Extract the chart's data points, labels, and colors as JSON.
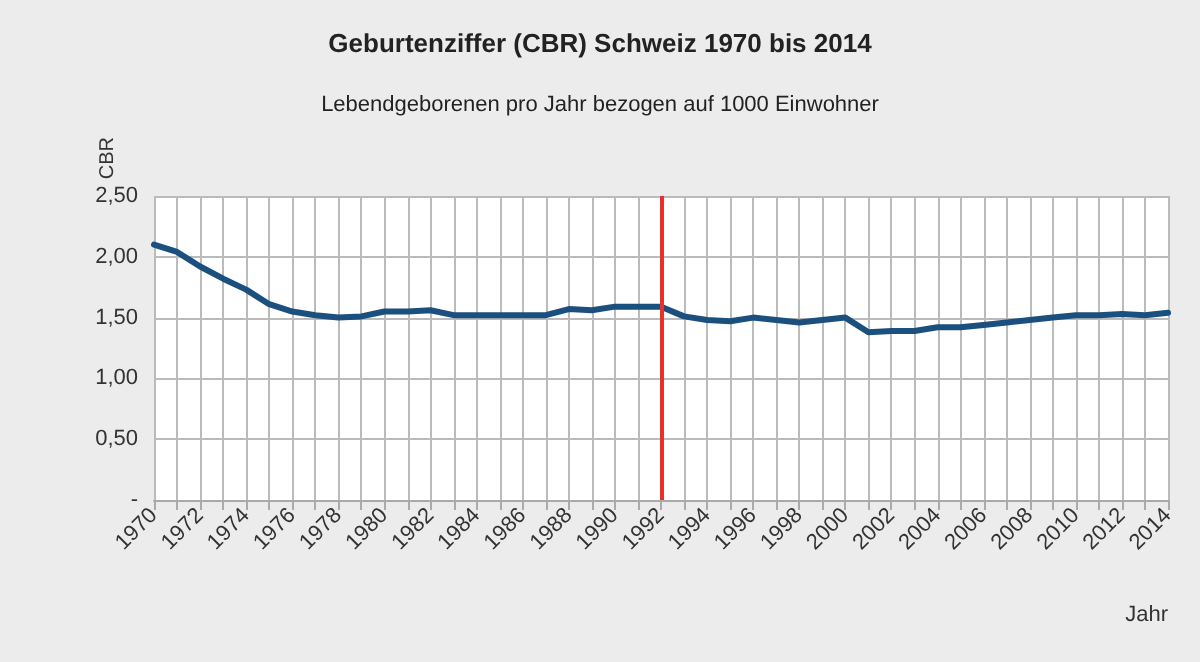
{
  "chart_data": {
    "type": "line",
    "title": "Geburtenziffer (CBR) Schweiz 1970 bis 2014",
    "subtitle": "Lebendgeborenen pro Jahr bezogen auf 1000 Einwohner",
    "xlabel": "Jahr",
    "ylabel": "CBR",
    "x": [
      1970,
      1971,
      1972,
      1973,
      1974,
      1975,
      1976,
      1977,
      1978,
      1979,
      1980,
      1981,
      1982,
      1983,
      1984,
      1985,
      1986,
      1987,
      1988,
      1989,
      1990,
      1991,
      1992,
      1993,
      1994,
      1995,
      1996,
      1997,
      1998,
      1999,
      2000,
      2001,
      2002,
      2003,
      2004,
      2005,
      2006,
      2007,
      2008,
      2009,
      2010,
      2011,
      2012,
      2013,
      2014
    ],
    "series": [
      {
        "color": "#1b4f7e",
        "values": [
          2.1,
          2.04,
          1.92,
          1.82,
          1.73,
          1.61,
          1.55,
          1.52,
          1.5,
          1.51,
          1.55,
          1.55,
          1.56,
          1.52,
          1.52,
          1.52,
          1.52,
          1.52,
          1.57,
          1.56,
          1.59,
          1.59,
          1.59,
          1.51,
          1.48,
          1.47,
          1.5,
          1.48,
          1.46,
          1.48,
          1.5,
          1.38,
          1.39,
          1.39,
          1.42,
          1.42,
          1.44,
          1.46,
          1.48,
          1.5,
          1.52,
          1.52,
          1.53,
          1.52,
          1.54
        ]
      }
    ],
    "xlim": [
      1970,
      2014
    ],
    "xticks": [
      1970,
      {
        "value": 1971,
        "label": null
      },
      1972,
      {
        "value": 1973,
        "label": null
      },
      1974,
      {
        "value": 1975,
        "label": null
      },
      1976,
      {
        "value": 1977,
        "label": null
      },
      1978,
      {
        "value": 1979,
        "label": null
      },
      1980,
      {
        "value": 1981,
        "label": null
      },
      1982,
      {
        "value": 1983,
        "label": null
      },
      1984,
      {
        "value": 1985,
        "label": null
      },
      1986,
      {
        "value": 1987,
        "label": null
      },
      1988,
      {
        "value": 1989,
        "label": null
      },
      1990,
      {
        "value": 1991,
        "label": null
      },
      1992,
      {
        "value": 1993,
        "label": null
      },
      1994,
      {
        "value": 1995,
        "label": null
      },
      1996,
      {
        "value": 1997,
        "label": null
      },
      1998,
      {
        "value": 1999,
        "label": null
      },
      2000,
      {
        "value": 2001,
        "label": null
      },
      2002,
      {
        "value": 2003,
        "label": null
      },
      2004,
      {
        "value": 2005,
        "label": null
      },
      2006,
      {
        "value": 2007,
        "label": null
      },
      2008,
      {
        "value": 2009,
        "label": null
      },
      2010,
      {
        "value": 2011,
        "label": null
      },
      2012,
      {
        "value": 2013,
        "label": null
      },
      2014
    ],
    "ylim": [
      0,
      2.5
    ],
    "yticks": [
      {
        "value": 0,
        "label": "-"
      },
      {
        "value": 0.5,
        "label": "0,50"
      },
      {
        "value": 1,
        "label": "1,00"
      },
      {
        "value": 1.5,
        "label": "1,50"
      },
      {
        "value": 2,
        "label": "2,00"
      },
      {
        "value": 2.5,
        "label": "2,50"
      }
    ],
    "ref_lines": [
      {
        "axis": "x",
        "value": 1992,
        "color": "#e8312b"
      }
    ],
    "grid": true,
    "marker": "none",
    "line_style": "solid"
  }
}
